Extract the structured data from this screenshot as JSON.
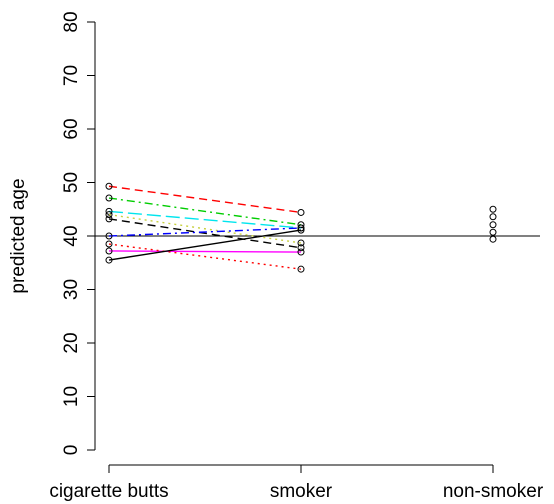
{
  "chart_data": {
    "type": "line",
    "y_label": "predicted age",
    "categories": [
      "cigarette butts",
      "smoker",
      "non-smoker"
    ],
    "ylim": [
      0,
      80
    ],
    "yticks": [
      0,
      10,
      20,
      30,
      40,
      50,
      60,
      70,
      80
    ],
    "hline": 40,
    "series": [
      {
        "color": "#ff0000",
        "dash": "8,5",
        "values": [
          49.3,
          44.4,
          null
        ]
      },
      {
        "color": "#00cd00",
        "dash": "8,4,2,4",
        "values": [
          47.1,
          42.1,
          null
        ]
      },
      {
        "color": "#00e5ee",
        "dash": "14,5",
        "values": [
          44.6,
          41.5,
          null
        ]
      },
      {
        "color": "#c8d040",
        "dash": "2,4",
        "values": [
          44.0,
          38.7,
          null
        ]
      },
      {
        "color": "#000000",
        "dash": "8,5",
        "values": [
          43.2,
          37.8,
          null
        ]
      },
      {
        "color": "#0000ff",
        "dash": "8,4,2,4",
        "values": [
          40.0,
          41.5,
          null
        ]
      },
      {
        "color": "#ff00ff",
        "dash": "",
        "values": [
          37.2,
          37.0,
          null
        ]
      },
      {
        "color": "#ff0000",
        "dash": "2,4",
        "values": [
          38.5,
          33.8,
          null
        ]
      },
      {
        "color": "#000000",
        "dash": "",
        "values": [
          35.5,
          41.1,
          null
        ]
      }
    ],
    "points": [
      45.0,
      43.6,
      42.1,
      40.7,
      39.4
    ],
    "points_category": 2
  }
}
